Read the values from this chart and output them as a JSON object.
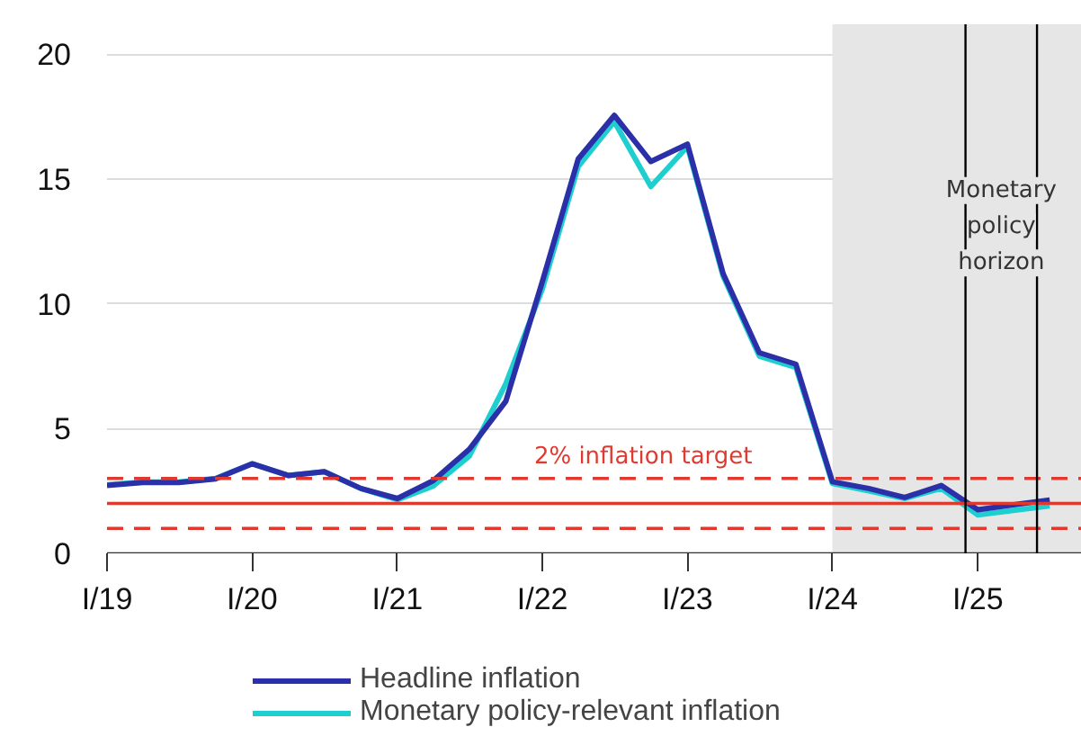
{
  "chart_data": {
    "type": "line",
    "x": [
      "2019-01",
      "2019-04",
      "2019-07",
      "2019-10",
      "2020-01",
      "2020-04",
      "2020-07",
      "2020-10",
      "2021-01",
      "2021-04",
      "2021-07",
      "2021-10",
      "2022-01",
      "2022-04",
      "2022-07",
      "2022-10",
      "2023-01",
      "2023-04",
      "2023-07",
      "2023-10",
      "2024-01",
      "2024-04",
      "2024-07",
      "2024-10",
      "2025-01",
      "2025-04",
      "2025-07"
    ],
    "series": [
      {
        "name": "Headline inflation",
        "color": "#2b2fa8",
        "values": [
          2.72,
          2.84,
          2.84,
          2.98,
          3.59,
          3.12,
          3.27,
          2.6,
          2.2,
          2.91,
          4.17,
          6.1,
          10.9,
          15.8,
          17.55,
          15.7,
          16.4,
          11.2,
          8.04,
          7.58,
          2.87,
          2.6,
          2.24,
          2.72,
          1.75,
          1.95,
          2.14
        ]
      },
      {
        "name": "Monetary policy-relevant inflation",
        "color": "#1fcfd0",
        "values": [
          2.75,
          2.86,
          2.86,
          3.0,
          3.59,
          3.12,
          3.27,
          2.6,
          2.15,
          2.7,
          3.9,
          6.8,
          10.6,
          15.5,
          17.3,
          14.7,
          16.3,
          11.1,
          7.9,
          7.45,
          2.8,
          2.5,
          2.2,
          2.6,
          1.54,
          1.72,
          1.9
        ]
      }
    ],
    "xlim": [
      "2019-01-01",
      "2025-09-20"
    ],
    "xticks": [
      {
        "value": "2019-01",
        "label": "I/19"
      },
      {
        "value": "2020-01",
        "label": "I/20"
      },
      {
        "value": "2021-01",
        "label": "I/21"
      },
      {
        "value": "2022-01",
        "label": "I/22"
      },
      {
        "value": "2023-01",
        "label": "I/23"
      },
      {
        "value": "2024-01",
        "label": "I/24"
      },
      {
        "value": "2025-01",
        "label": "I/25"
      }
    ],
    "ylim": [
      0,
      21.2
    ],
    "yticks": [
      0,
      5,
      10,
      15,
      20
    ],
    "grid": "y",
    "legend": "bottom",
    "line_style": "solid",
    "ref_lines": [
      {
        "axis": "y",
        "value": 2,
        "label": "2% inflation target",
        "color": "#e03a30",
        "line_style": "solid"
      },
      {
        "axis": "y",
        "value": 3,
        "color": "#e03a30",
        "line_style": "dashed"
      },
      {
        "axis": "y",
        "value": 1,
        "color": "#e03a30",
        "line_style": "dashed"
      },
      {
        "axis": "x",
        "value": "2024-12-01",
        "color": "#000000",
        "line_style": "solid"
      },
      {
        "axis": "x",
        "value": "2025-05-30",
        "color": "#000000",
        "line_style": "solid"
      }
    ],
    "bands": [
      {
        "axis": "x",
        "from": "2024-01",
        "to": "2025-09-20",
        "color": "#e6e6e6"
      }
    ],
    "annotations": [
      "Monetary policy horizon"
    ]
  }
}
